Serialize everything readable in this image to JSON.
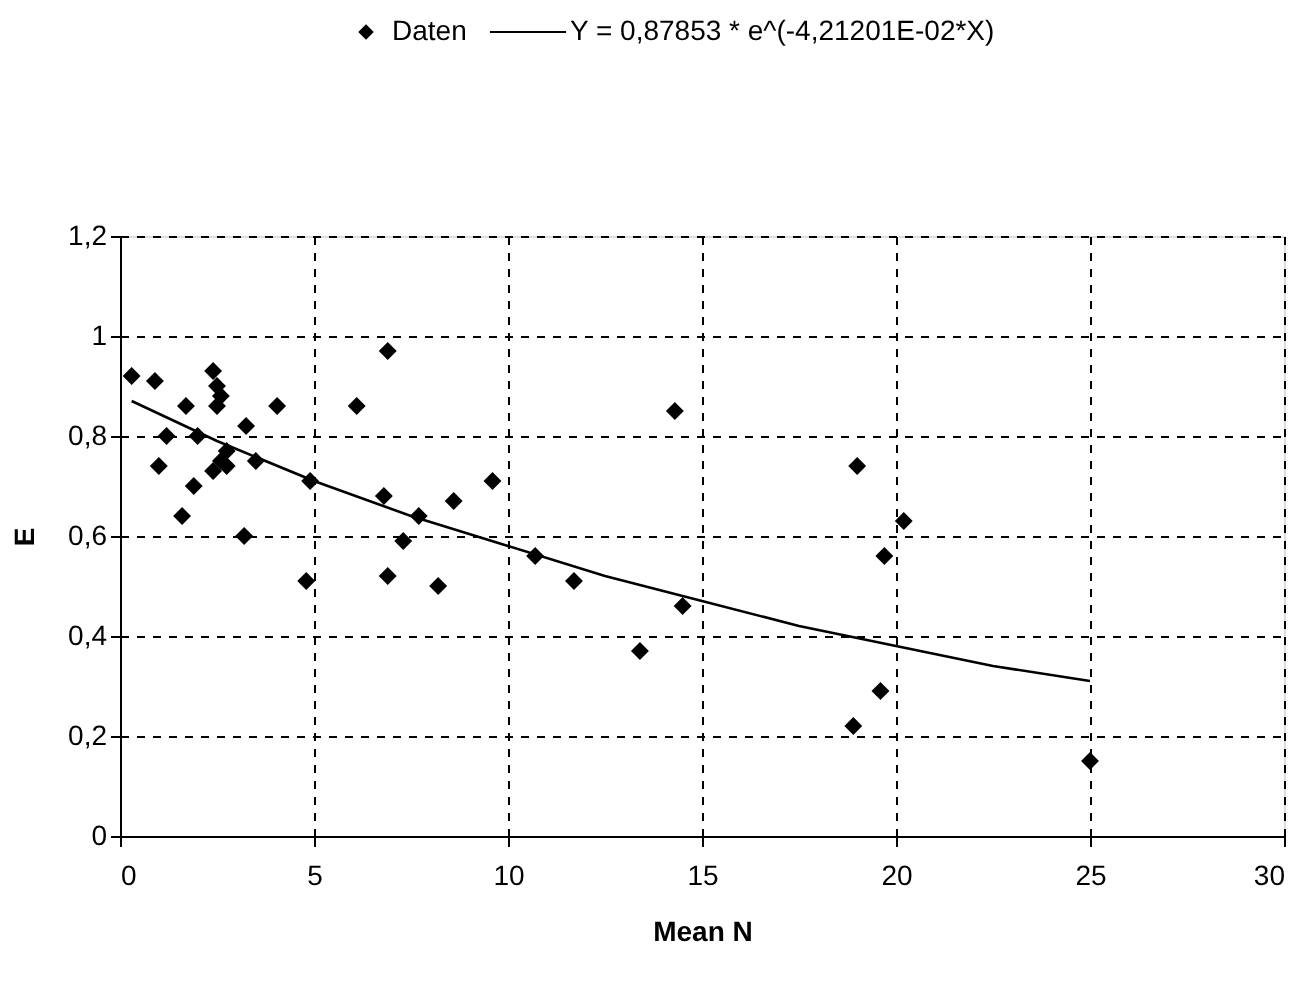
{
  "chart_data": {
    "type": "scatter",
    "xlabel": "Mean N",
    "ylabel": "E",
    "xlim": [
      0,
      30
    ],
    "xticks": [
      0,
      5,
      10,
      15,
      20,
      25,
      30
    ],
    "ylim": [
      0,
      1.2
    ],
    "yticks": [
      0,
      {
        "value": 0.2,
        "label": "0,2"
      },
      {
        "value": 0.4,
        "label": "0,4"
      },
      {
        "value": 0.6,
        "label": "0,6"
      },
      {
        "value": 0.8,
        "label": "0,8"
      },
      1,
      {
        "value": 1.2,
        "label": "1,2"
      }
    ],
    "grid": true,
    "legend": "top",
    "series": [
      {
        "name": "Daten",
        "marker": "diamond",
        "color": "#000000",
        "x": [
          0.3,
          0.9,
          1.2,
          1.0,
          1.7,
          1.6,
          2.0,
          1.9,
          2.4,
          2.5,
          2.6,
          2.5,
          2.75,
          2.4,
          2.75,
          2.6,
          3.25,
          3.2,
          3.5,
          4.05,
          4.9,
          4.8,
          6.1,
          6.9,
          6.8,
          6.9,
          7.3,
          7.7,
          8.2,
          8.6,
          9.6,
          10.7,
          11.7,
          14.3,
          14.5,
          13.4,
          19.0,
          20.2,
          19.7,
          19.6,
          18.9,
          25.0
        ],
        "values": [
          0.92,
          0.91,
          0.8,
          0.74,
          0.86,
          0.64,
          0.8,
          0.7,
          0.93,
          0.9,
          0.88,
          0.86,
          0.77,
          0.73,
          0.74,
          0.75,
          0.82,
          0.6,
          0.75,
          0.86,
          0.71,
          0.51,
          0.86,
          0.97,
          0.68,
          0.52,
          0.59,
          0.64,
          0.5,
          0.67,
          0.71,
          0.56,
          0.51,
          0.85,
          0.46,
          0.37,
          0.74,
          0.63,
          0.56,
          0.29,
          0.22,
          0.15
        ]
      },
      {
        "name": "Y = 0,87853 * e^(-4,21201E-02*X)",
        "type": "line",
        "line_style": "solid",
        "color": "#000000",
        "x": [
          0.3,
          2.5,
          5,
          7.5,
          10,
          12.5,
          15,
          17.5,
          20,
          22.5,
          25
        ],
        "values": [
          0.87,
          0.79,
          0.71,
          0.64,
          0.58,
          0.52,
          0.47,
          0.42,
          0.38,
          0.34,
          0.31
        ]
      }
    ]
  }
}
